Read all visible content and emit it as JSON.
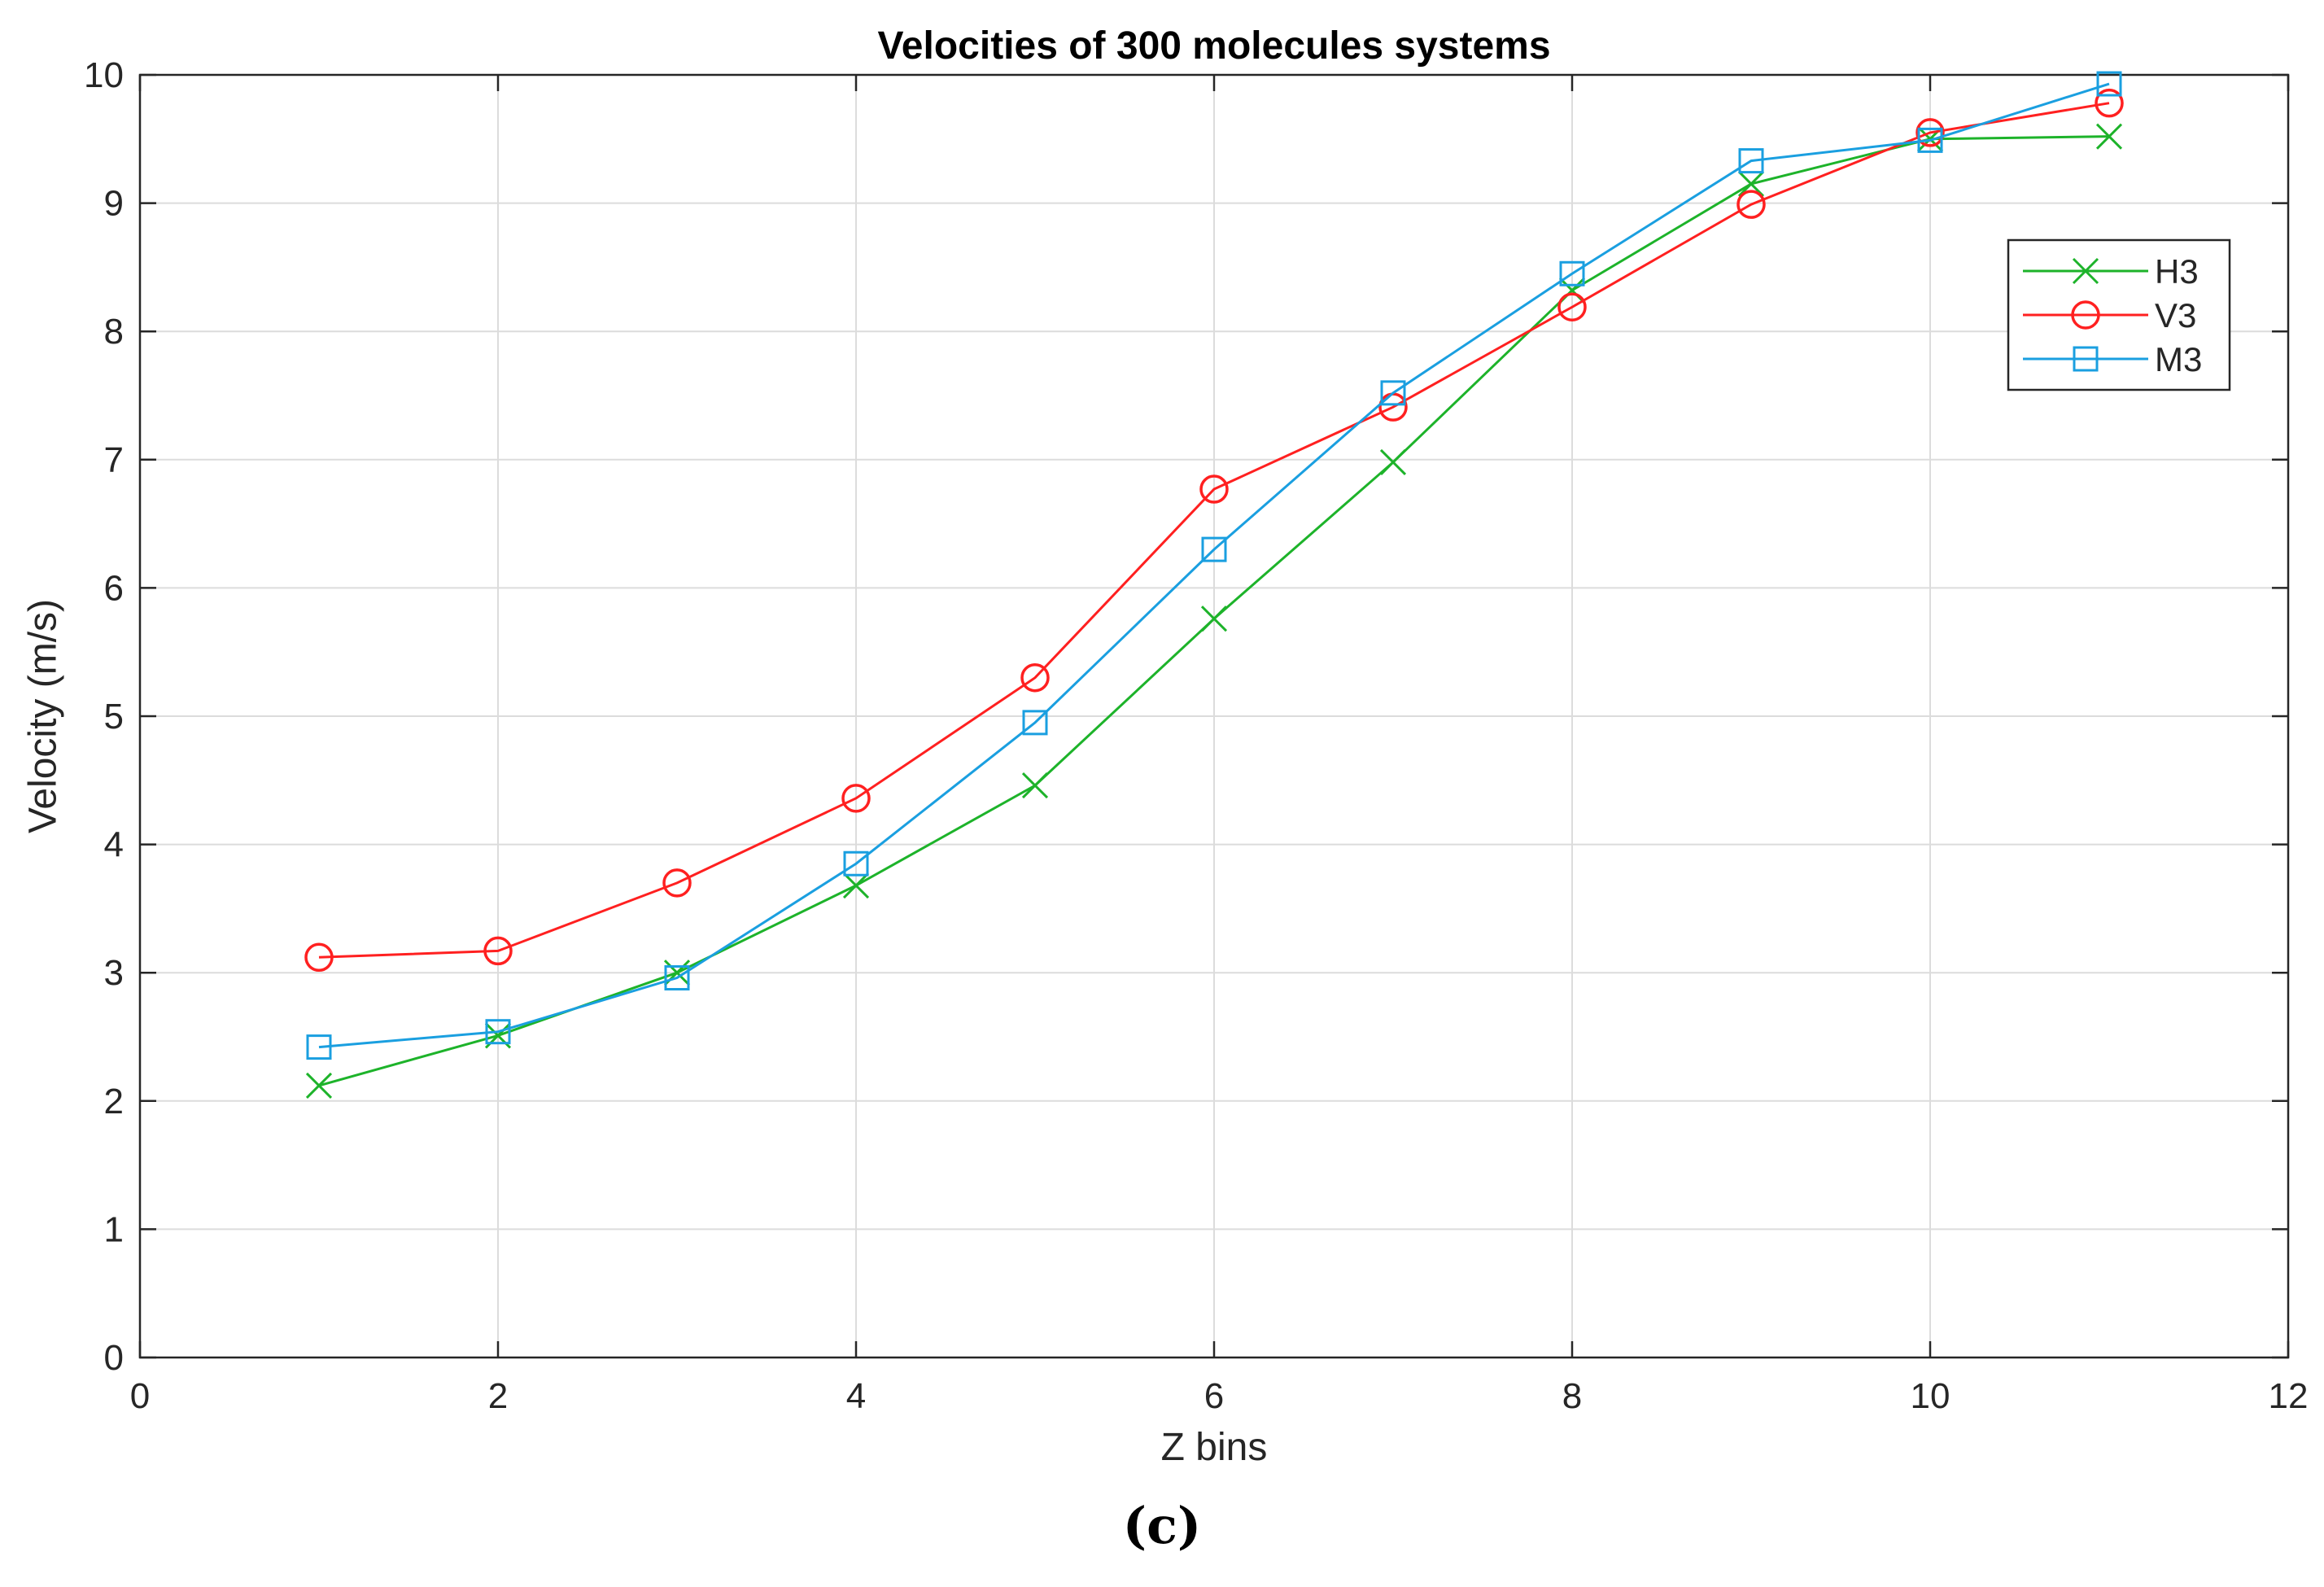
{
  "chart_data": {
    "type": "line",
    "title": "Velocities of 300 molecules systems",
    "xlabel": "Z bins",
    "ylabel": "Velocity (m/s)",
    "xlim": [
      0,
      12
    ],
    "ylim": [
      0,
      10
    ],
    "x_ticks": [
      0,
      2,
      4,
      6,
      8,
      10,
      12
    ],
    "y_ticks": [
      0,
      1,
      2,
      3,
      4,
      5,
      6,
      7,
      8,
      9,
      10
    ],
    "grid": true,
    "legend_position": "top-right",
    "x": [
      1,
      2,
      3,
      4,
      5,
      6,
      7,
      8,
      9,
      10,
      11
    ],
    "series": [
      {
        "name": "H3",
        "color": "#1db32a",
        "marker": "x",
        "values": [
          2.12,
          2.51,
          3.0,
          3.68,
          4.46,
          5.76,
          6.98,
          8.32,
          9.15,
          9.5,
          9.52
        ]
      },
      {
        "name": "V3",
        "color": "#ff2020",
        "marker": "circle",
        "values": [
          3.12,
          3.17,
          3.7,
          4.36,
          5.3,
          6.77,
          7.41,
          8.19,
          8.99,
          9.55,
          9.78
        ]
      },
      {
        "name": "M3",
        "color": "#1a9fe0",
        "marker": "square",
        "values": [
          2.42,
          2.54,
          2.96,
          3.85,
          4.95,
          6.3,
          7.52,
          8.45,
          9.33,
          9.49,
          9.93
        ]
      }
    ]
  },
  "caption": "(c)"
}
